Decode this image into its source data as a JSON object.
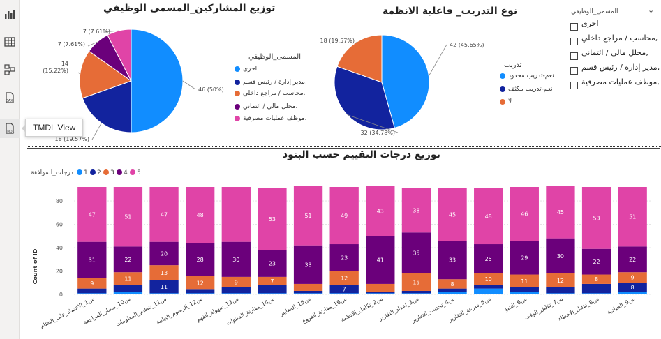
{
  "rail": {
    "tooltip": "TMDL View",
    "icons": [
      "report-view-icon",
      "table-view-icon",
      "model-view-icon",
      "dax-query-icon",
      "tmdl-view-icon"
    ]
  },
  "colors": {
    "blue": "#118DFF",
    "navy": "#12239E",
    "orange": "#E66C37",
    "purple": "#6B007B",
    "pink": "#E044A7"
  },
  "pie1": {
    "title": "توزيع المشاركين_المسمى الوظيفي",
    "legend_title": "المسمى_الوظيفي",
    "legend": [
      "اخرى",
      "مدير إدارة / رئيس قسم.",
      "محاسب / مراجع داخلي.",
      "محلل مالي / ائتماني.",
      "موظف عمليات مصرفية."
    ],
    "labels": [
      "46 (50%)",
      "18 (19.57%)",
      "14 (15.22%)",
      "7 (7.61%)",
      "7 (7.61%)"
    ],
    "values": [
      46,
      18,
      14,
      7,
      7
    ]
  },
  "pie2": {
    "title": "نوع التدريب_ فاعلية الانظمة",
    "legend_title": "تدريب",
    "legend": [
      "نعم-تدريب محدود",
      "نعم-تدريب مكثف",
      "لا"
    ],
    "labels": [
      "42 (45.65%)",
      "32 (34.78%)",
      "18 (19.57%)"
    ],
    "values": [
      42,
      32,
      18
    ]
  },
  "slicer": {
    "title": "المسمى_الوظيفي",
    "items": [
      "اخرى",
      "محاسب / مراجع داخلي,",
      "محلل مالي / ائتماني,",
      "مدير إدارة / رئيس قسم,",
      "موظف عمليات مصرفية,"
    ]
  },
  "chart_data": {
    "type": "bar",
    "title": "توزيع درجات التقييم حسب البنود",
    "ylabel": "Count of ID",
    "xlabel": "",
    "ylim": [
      0,
      92
    ],
    "yticks": [
      0,
      20,
      40,
      60,
      80
    ],
    "legend_title": "درجات_الموافقة",
    "legend": [
      "1",
      "2",
      "3",
      "4",
      "5"
    ],
    "categories": [
      "س1_الاعتماد_على_النظام",
      "س10_مسار_المراجعة",
      "س11_تنظيم_المعلومات",
      "س12_الرسوم_البيانية",
      "س13_سهولة_الفهم",
      "س14_مقارنة_السنوات",
      "س15_المعايير",
      "س16_مقارنة_الفروع",
      "س2_تكامل_الانظمة",
      "س3_اعداد_التقارير",
      "س4_تحديث_التقارير",
      "س5_سرعة_التقارير",
      "س6_التنبؤ",
      "س7_تقليل_الوقت",
      "س8_تقليل_الاخطاء",
      "س9_الحيادية"
    ],
    "series": [
      {
        "name": "1",
        "values": [
          1,
          2,
          1,
          1,
          1,
          1,
          1,
          1,
          1,
          1,
          2,
          5,
          2,
          1,
          1,
          2
        ]
      },
      {
        "name": "2",
        "values": [
          4,
          6,
          11,
          3,
          5,
          7,
          2,
          7,
          1,
          2,
          3,
          3,
          4,
          5,
          8,
          8
        ]
      },
      {
        "name": "3",
        "values": [
          9,
          11,
          13,
          12,
          9,
          7,
          6,
          12,
          7,
          15,
          8,
          10,
          11,
          12,
          8,
          9
        ]
      },
      {
        "name": "4",
        "values": [
          31,
          22,
          20,
          28,
          30,
          23,
          33,
          23,
          41,
          35,
          33,
          25,
          29,
          30,
          22,
          22
        ]
      },
      {
        "name": "5",
        "values": [
          47,
          51,
          47,
          48,
          47,
          53,
          51,
          49,
          43,
          38,
          45,
          48,
          46,
          45,
          53,
          51
        ]
      }
    ],
    "data_labels": {
      "1": [],
      "2": [
        "",
        "",
        "11",
        "",
        "",
        "",
        "",
        "7",
        "",
        "",
        "",
        "",
        "",
        "",
        "",
        "8"
      ],
      "3": [
        "9",
        "11",
        "13",
        "12",
        "9",
        "7",
        "",
        "12",
        "",
        "15",
        "8",
        "10",
        "11",
        "12",
        "8",
        "9"
      ],
      "4": [
        "31",
        "22",
        "20",
        "28",
        "30",
        "23",
        "33",
        "23",
        "41",
        "35",
        "33",
        "25",
        "29",
        "30",
        "22",
        "22"
      ],
      "5": [
        "47",
        "51",
        "47",
        "48",
        "",
        "53",
        "51",
        "49",
        "43",
        "38",
        "45",
        "48",
        "46",
        "45",
        "53",
        "51"
      ]
    }
  }
}
